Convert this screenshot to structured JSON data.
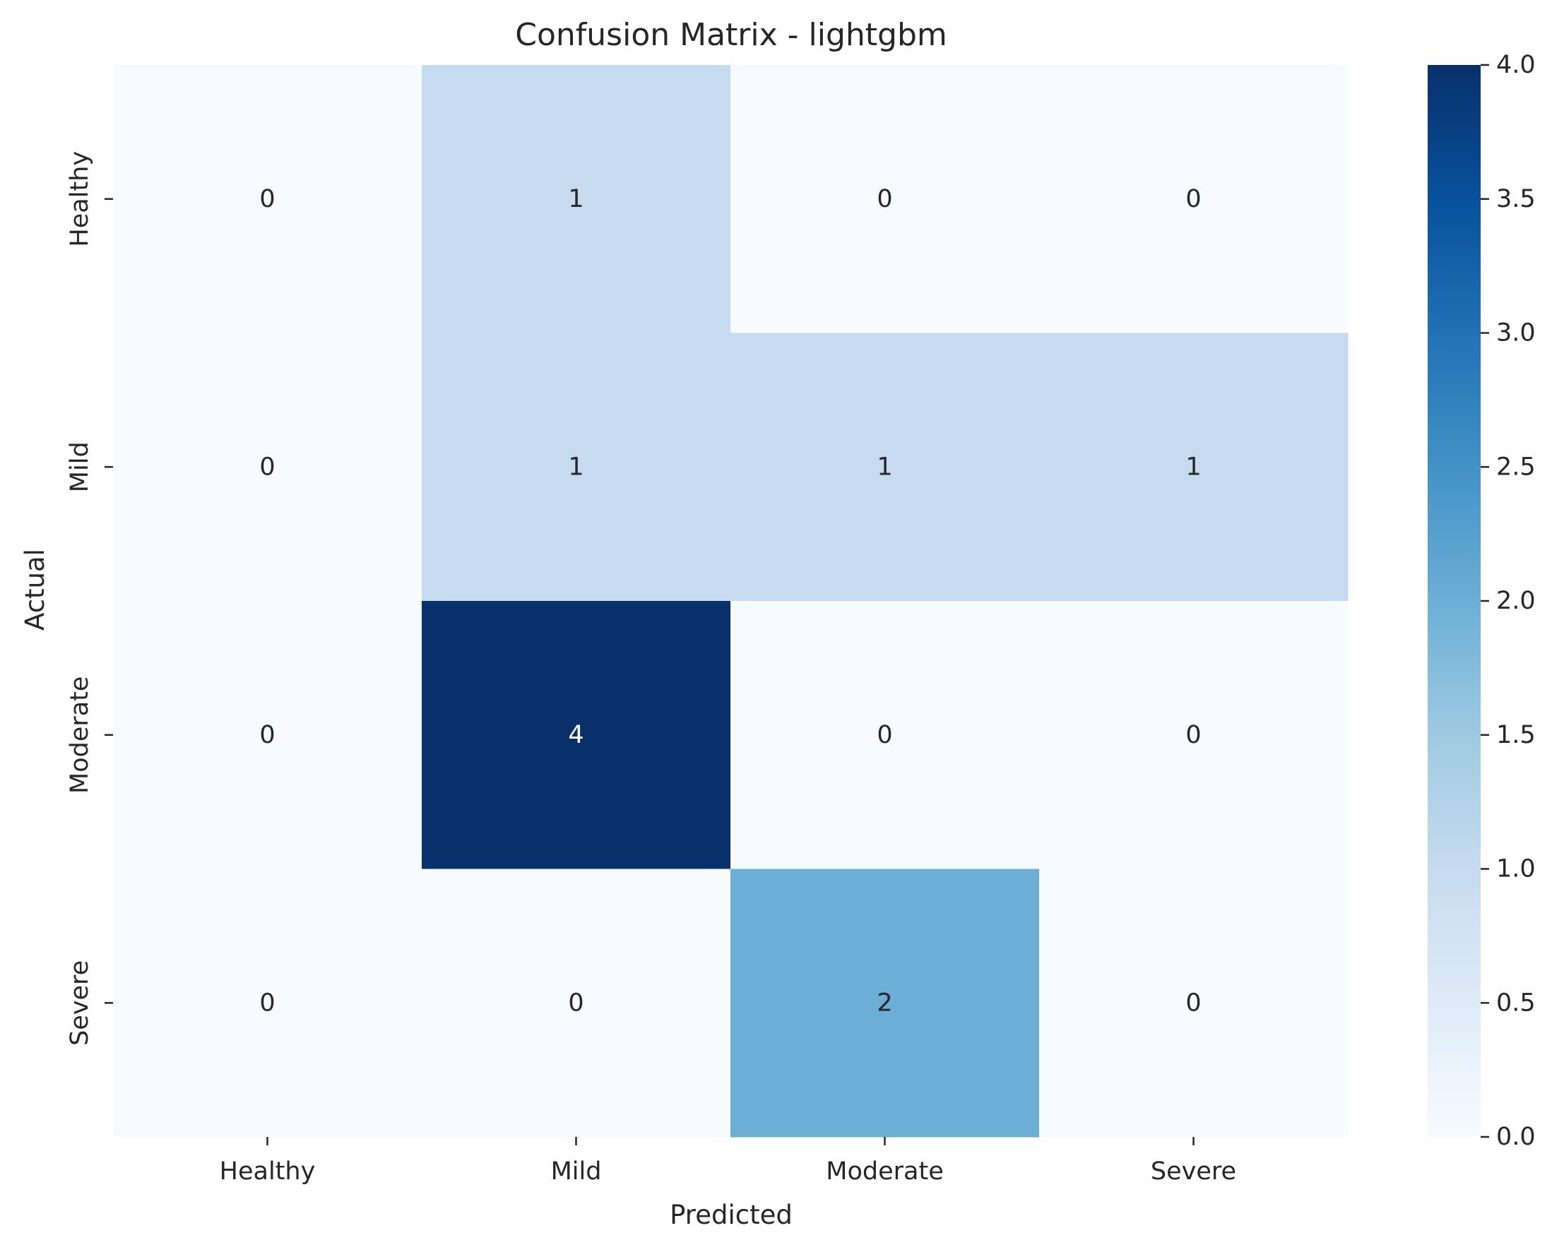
{
  "chart_data": {
    "type": "heatmap",
    "title": "Confusion Matrix - lightgbm",
    "xlabel": "Predicted",
    "ylabel": "Actual",
    "x_categories": [
      "Healthy",
      "Mild",
      "Moderate",
      "Severe"
    ],
    "y_categories": [
      "Healthy",
      "Mild",
      "Moderate",
      "Severe"
    ],
    "values": [
      [
        0,
        1,
        0,
        0
      ],
      [
        0,
        1,
        1,
        1
      ],
      [
        0,
        4,
        0,
        0
      ],
      [
        0,
        0,
        2,
        0
      ]
    ],
    "colormap": "Blues",
    "colorbar": {
      "range": [
        0.0,
        4.0
      ],
      "ticks": [
        "0.0",
        "0.5",
        "1.0",
        "1.5",
        "2.0",
        "2.5",
        "3.0",
        "3.5",
        "4.0"
      ]
    },
    "annotations": true,
    "grid": false
  }
}
